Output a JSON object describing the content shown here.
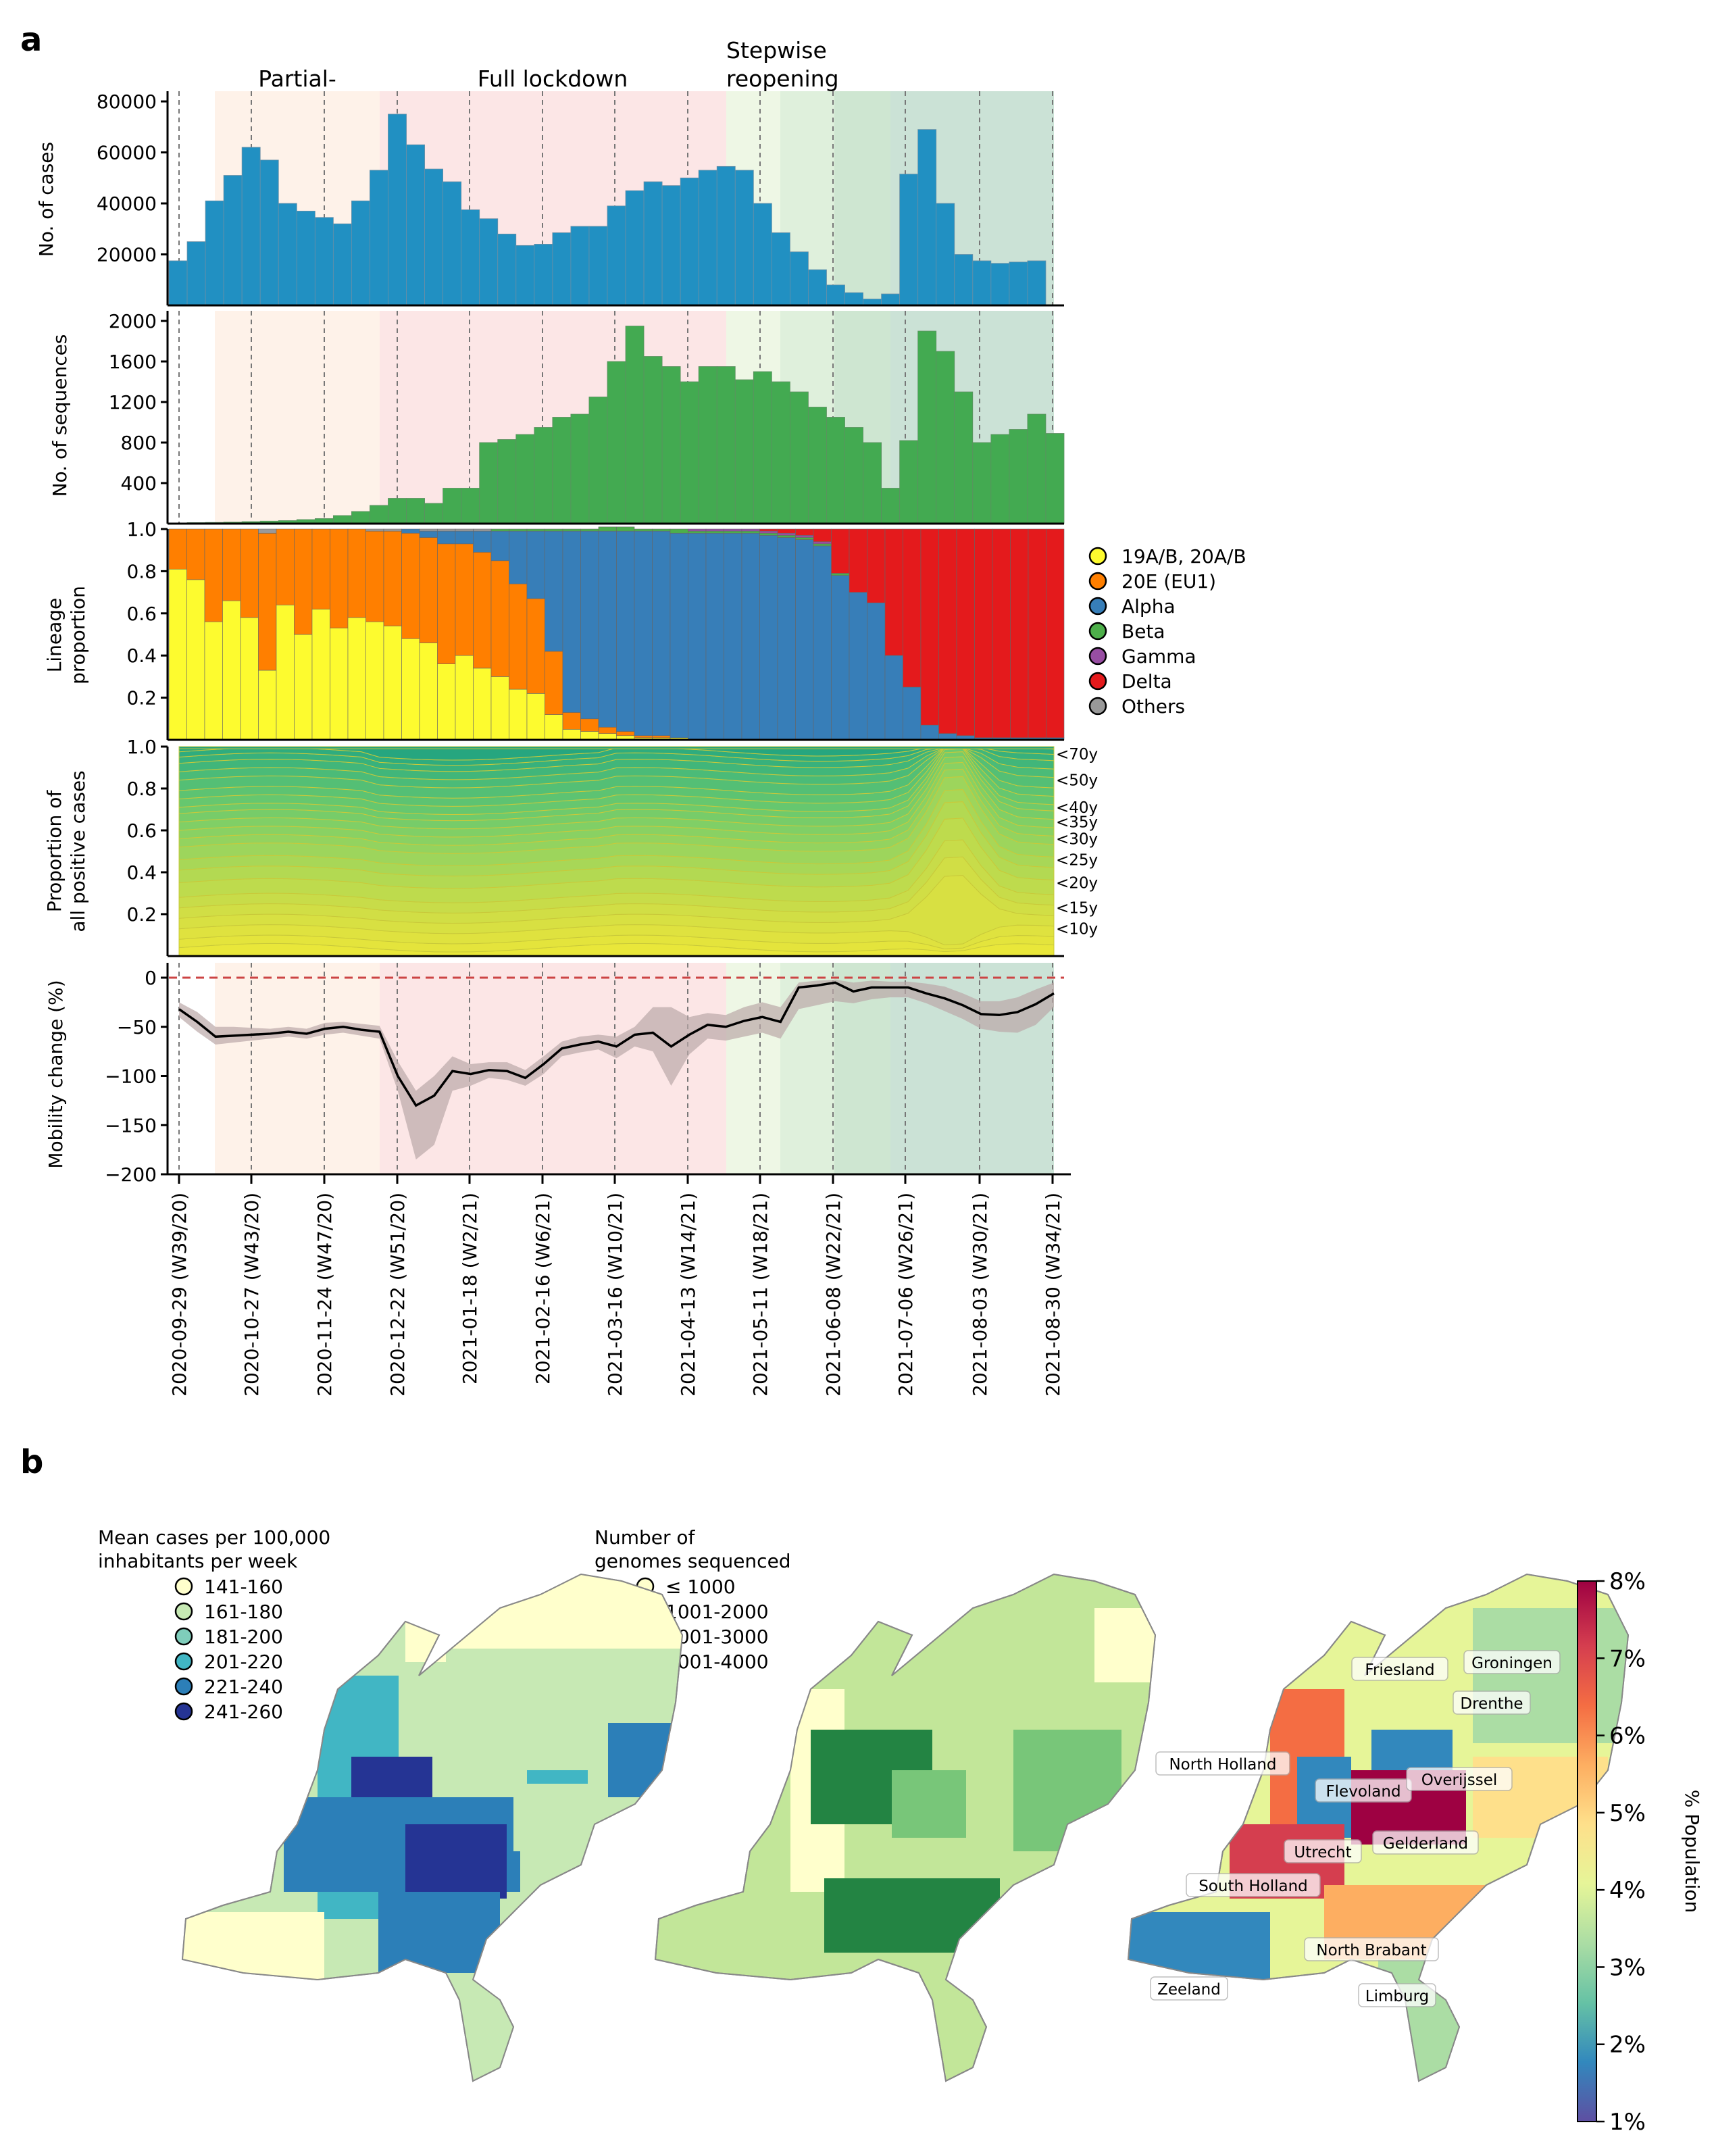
{
  "panel_labels": {
    "a": "a",
    "b": "b"
  },
  "phases": {
    "partial": "Partial-",
    "full": "Full lockdown",
    "stepwise_1": "Stepwise",
    "stepwise_2": "reopening"
  },
  "weeks": [
    "2020-09-29 (W39/20)",
    "2020-10-27 (W43/20)",
    "2020-11-24 (W47/20)",
    "2020-12-22 (W51/20)",
    "2021-01-18 (W2/21)",
    "2021-02-16 (W6/21)",
    "2021-03-16 (W10/21)",
    "2021-04-13 (W14/21)",
    "2021-05-11 (W18/21)",
    "2021-06-08 (W22/21)",
    "2021-07-06 (W26/21)",
    "2021-08-03 (W30/21)",
    "2021-08-30 (W34/21)"
  ],
  "chart_data": [
    {
      "type": "bar",
      "ylabel": "No. of cases",
      "ylim": [
        0,
        84000
      ],
      "yticks": [
        "20000",
        "40000",
        "60000",
        "80000"
      ],
      "values": [
        17500,
        25000,
        41000,
        51000,
        62000,
        57000,
        40000,
        37000,
        34500,
        32000,
        41000,
        53000,
        75000,
        63000,
        53500,
        48500,
        37500,
        34000,
        28000,
        23500,
        24000,
        28500,
        31000,
        31000,
        39000,
        45000,
        48500,
        47000,
        50000,
        53000,
        54500,
        53000,
        40000,
        28500,
        21000,
        14000,
        8000,
        5000,
        2500,
        4500,
        51500,
        69000,
        40000,
        20000,
        17500,
        16500,
        17000,
        17500
      ],
      "colors": {
        "bar": "#2190c2"
      }
    },
    {
      "type": "bar",
      "ylabel": "No. of sequences",
      "ylim": [
        0,
        2100
      ],
      "yticks": [
        "400",
        "800",
        "1200",
        "1600",
        "2000"
      ],
      "values": [
        5,
        10,
        12,
        15,
        20,
        25,
        30,
        40,
        50,
        80,
        120,
        180,
        250,
        250,
        200,
        350,
        350,
        800,
        830,
        880,
        950,
        1050,
        1080,
        1250,
        1600,
        1950,
        1650,
        1550,
        1400,
        1550,
        1550,
        1420,
        1500,
        1400,
        1300,
        1150,
        1050,
        950,
        800,
        350,
        820,
        1900,
        1700,
        1300,
        800,
        880,
        930,
        1080,
        890
      ],
      "colors": {
        "bar": "#43aa51"
      }
    },
    {
      "type": "area",
      "ylabel": "Lineage proportion",
      "yticks": [
        "0.2",
        "0.4",
        "0.6",
        "0.8",
        "1.0"
      ],
      "legend": [
        "19A/B, 20A/B",
        "20E (EU1)",
        "Alpha",
        "Beta",
        "Gamma",
        "Delta",
        "Others"
      ],
      "colors": [
        "#fdfb2f",
        "#ff7f00",
        "#377eb8",
        "#4daf4a",
        "#984ea3",
        "#e41a1c",
        "#999999"
      ],
      "series": {
        "19A/B, 20A/B": [
          0.81,
          0.76,
          0.56,
          0.66,
          0.58,
          0.33,
          0.64,
          0.5,
          0.62,
          0.53,
          0.58,
          0.56,
          0.54,
          0.48,
          0.46,
          0.36,
          0.4,
          0.34,
          0.3,
          0.24,
          0.22,
          0.12,
          0.05,
          0.04,
          0.03,
          0.02,
          0.01,
          0.01,
          0.01,
          0,
          0,
          0,
          0,
          0,
          0,
          0,
          0,
          0,
          0,
          0,
          0,
          0,
          0,
          0,
          0,
          0,
          0,
          0,
          0,
          0
        ],
        "20E (EU1)": [
          0.19,
          0.24,
          0.44,
          0.34,
          0.42,
          0.65,
          0.36,
          0.5,
          0.38,
          0.47,
          0.42,
          0.43,
          0.45,
          0.5,
          0.5,
          0.57,
          0.53,
          0.55,
          0.55,
          0.5,
          0.45,
          0.3,
          0.08,
          0.06,
          0.03,
          0.02,
          0.01,
          0.01,
          0,
          0,
          0,
          0,
          0,
          0,
          0,
          0,
          0,
          0,
          0,
          0,
          0,
          0,
          0,
          0,
          0,
          0,
          0,
          0,
          0,
          0
        ],
        "Alpha": [
          0,
          0,
          0,
          0,
          0,
          0,
          0,
          0,
          0,
          0,
          0,
          0,
          0,
          0.02,
          0.03,
          0.06,
          0.06,
          0.1,
          0.14,
          0.25,
          0.32,
          0.57,
          0.86,
          0.89,
          0.93,
          0.95,
          0.97,
          0.97,
          0.97,
          0.98,
          0.98,
          0.98,
          0.98,
          0.97,
          0.96,
          0.95,
          0.92,
          0.78,
          0.7,
          0.65,
          0.4,
          0.25,
          0.07,
          0.03,
          0.02,
          0.01,
          0.01,
          0.01,
          0.01,
          0.01
        ],
        "Beta": [
          0,
          0,
          0,
          0,
          0,
          0,
          0,
          0,
          0,
          0,
          0,
          0,
          0,
          0,
          0,
          0,
          0,
          0,
          0.01,
          0.01,
          0.01,
          0.01,
          0.01,
          0.01,
          0.02,
          0.02,
          0.01,
          0.01,
          0.02,
          0.01,
          0.01,
          0.01,
          0.01,
          0.01,
          0.01,
          0.01,
          0.01,
          0.01,
          0,
          0,
          0,
          0,
          0,
          0,
          0,
          0,
          0,
          0,
          0,
          0
        ],
        "Gamma": [
          0,
          0,
          0,
          0,
          0,
          0,
          0,
          0,
          0,
          0,
          0,
          0,
          0,
          0,
          0,
          0,
          0,
          0,
          0,
          0,
          0,
          0,
          0,
          0,
          0,
          0,
          0,
          0,
          0,
          0.01,
          0.01,
          0.01,
          0.01,
          0.01,
          0.01,
          0.01,
          0.01,
          0,
          0,
          0,
          0,
          0,
          0,
          0,
          0,
          0,
          0,
          0,
          0,
          0
        ],
        "Delta": [
          0,
          0,
          0,
          0,
          0,
          0,
          0,
          0,
          0,
          0,
          0,
          0,
          0,
          0,
          0,
          0,
          0,
          0,
          0,
          0,
          0,
          0,
          0,
          0,
          0,
          0,
          0,
          0,
          0,
          0,
          0,
          0,
          0,
          0.01,
          0.02,
          0.03,
          0.06,
          0.21,
          0.3,
          0.35,
          0.6,
          0.75,
          0.93,
          0.97,
          0.98,
          0.99,
          0.99,
          0.99,
          0.99,
          0.99
        ]
      }
    },
    {
      "type": "area",
      "ylabel": "Proportion of all positive cases",
      "yticks": [
        "0.2",
        "0.4",
        "0.6",
        "0.8",
        "1.0"
      ],
      "age_labels": [
        "<70y",
        "<50y",
        "<40y",
        "<35y",
        "<30y",
        "<25y",
        "<20y",
        "<15y",
        "<10y"
      ],
      "age_label_values": [
        0.965,
        0.84,
        0.71,
        0.64,
        0.56,
        0.46,
        0.35,
        0.23,
        0.13
      ]
    },
    {
      "type": "line",
      "ylabel": "Mobility change (%)",
      "ylim": [
        -200,
        0
      ],
      "yticks": [
        "0",
        "−50",
        "−100",
        "−150",
        "−200"
      ],
      "values": [
        -32,
        -45,
        -60,
        -59,
        -58,
        -57,
        -55,
        -57,
        -52,
        -50,
        -53,
        -55,
        -100,
        -130,
        -120,
        -95,
        -98,
        -94,
        -95,
        -102,
        -88,
        -72,
        -68,
        -65,
        -70,
        -58,
        -56,
        -70,
        -58,
        -48,
        -50,
        -44,
        -40,
        -45,
        -10,
        -8,
        -5,
        -14,
        -10,
        -10,
        -10,
        -16,
        -21,
        -28,
        -37,
        -38,
        -35,
        -27,
        -16
      ],
      "band_lower": [
        -40,
        -55,
        -68,
        -66,
        -64,
        -62,
        -60,
        -62,
        -58,
        -56,
        -59,
        -62,
        -115,
        -185,
        -170,
        -115,
        -110,
        -102,
        -104,
        -110,
        -98,
        -80,
        -76,
        -73,
        -82,
        -70,
        -75,
        -110,
        -78,
        -62,
        -64,
        -60,
        -56,
        -62,
        -32,
        -28,
        -24,
        -26,
        -22,
        -20,
        -20,
        -26,
        -34,
        -42,
        -52,
        -55,
        -56,
        -48,
        -30
      ],
      "band_upper": [
        -25,
        -35,
        -50,
        -50,
        -51,
        -52,
        -50,
        -52,
        -46,
        -45,
        -47,
        -49,
        -85,
        -115,
        -100,
        -80,
        -88,
        -86,
        -86,
        -94,
        -80,
        -65,
        -60,
        -58,
        -60,
        -50,
        -30,
        -30,
        -40,
        -36,
        -38,
        -30,
        -25,
        -30,
        -5,
        -3,
        -2,
        -5,
        -3,
        -4,
        -4,
        -6,
        -9,
        -16,
        -24,
        -24,
        -20,
        -12,
        -5
      ],
      "colors": {
        "line": "#000000",
        "band": "#bba8a8",
        "ref": "#cc4444"
      }
    }
  ],
  "legend_cases": {
    "title_1": "Mean cases per 100,000",
    "title_2": "inhabitants per week",
    "items": [
      "141-160",
      "161-180",
      "181-200",
      "201-220",
      "221-240",
      "241-260"
    ],
    "colors": [
      "#ffffcc",
      "#c7e9b4",
      "#7fcdbb",
      "#41b6c4",
      "#2c7fb8",
      "#253494"
    ]
  },
  "legend_genomes": {
    "title_1": "Number of",
    "title_2": "genomes sequenced",
    "items": [
      "≤ 1000",
      "1001-2000",
      "2001-3000",
      "3001-4000"
    ],
    "colors": [
      "#ffffcc",
      "#c2e699",
      "#78c679",
      "#238443"
    ]
  },
  "provinces": [
    "Friesland",
    "Groningen",
    "Drenthe",
    "North Holland",
    "Flevoland",
    "Overijssel",
    "Utrecht",
    "Gelderland",
    "South Holland",
    "North Brabant",
    "Zeeland",
    "Limburg"
  ],
  "colorbar": {
    "label": "% Population",
    "ticks": [
      "8%",
      "7%",
      "6%",
      "5%",
      "4%",
      "3%",
      "2%",
      "1%"
    ],
    "colors": [
      "#5e4fa2",
      "#3288bd",
      "#66c2a5",
      "#abdda4",
      "#e6f598",
      "#fee08b",
      "#fdae61",
      "#f46d43",
      "#d53e4f",
      "#9e0142"
    ]
  }
}
